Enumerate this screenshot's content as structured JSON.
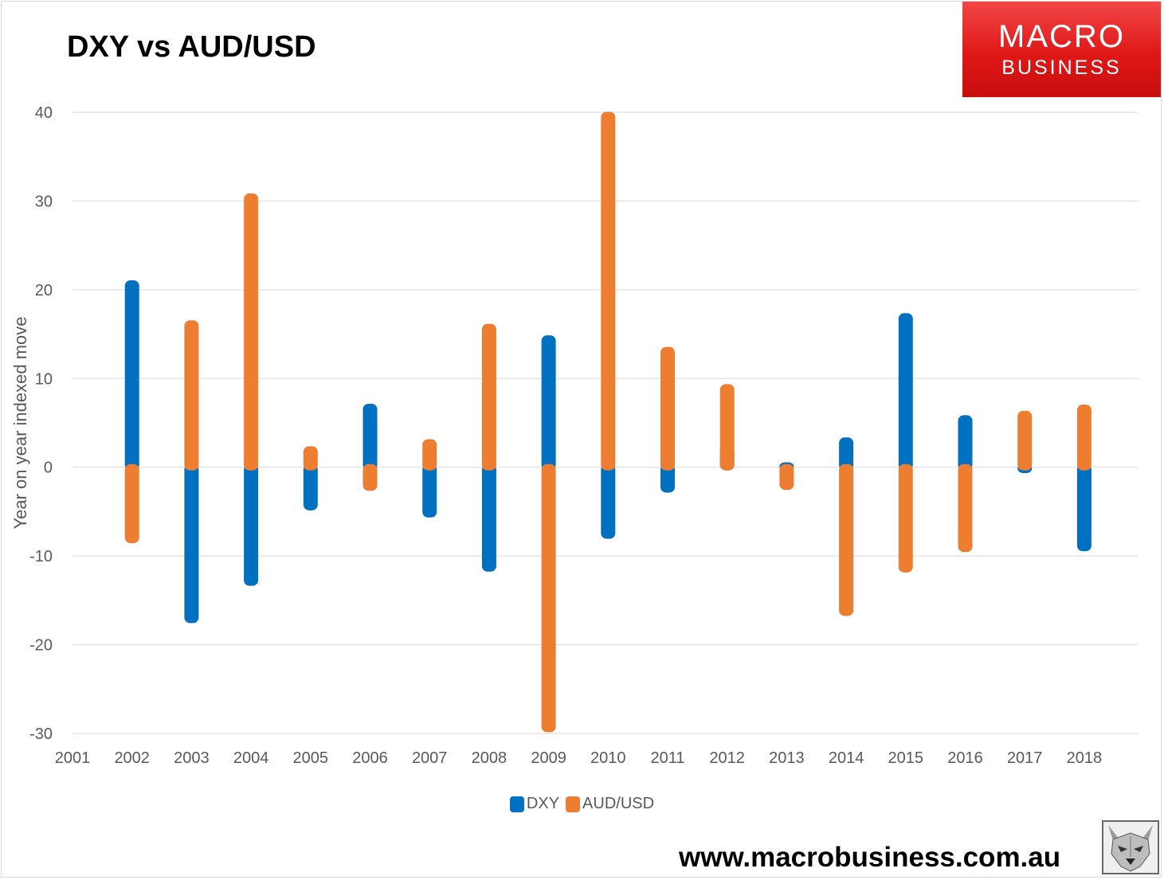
{
  "header": {
    "title": "DXY vs AUD/USD"
  },
  "brand": {
    "logo_line1": "MACRO",
    "logo_line2": "BUSINESS",
    "website": "www.macrobusiness.com.au",
    "logo_color": "#e01818"
  },
  "chart_data": {
    "type": "bar",
    "title": "DXY vs AUD/USD",
    "xlabel": "",
    "ylabel": "Year on year indexed move",
    "x_ticks": [
      "2001",
      "2002",
      "2003",
      "2004",
      "2005",
      "2006",
      "2007",
      "2008",
      "2009",
      "2010",
      "2011",
      "2012",
      "2013",
      "2014",
      "2015",
      "2016",
      "2017",
      "2018"
    ],
    "categories": [
      "2002",
      "2003",
      "2004",
      "2005",
      "2006",
      "2007",
      "2008",
      "2009",
      "2010",
      "2011",
      "2012",
      "2013",
      "2014",
      "2015",
      "2016",
      "2017",
      "2018"
    ],
    "ylim": [
      -30,
      40
    ],
    "y_ticks": [
      -30,
      -20,
      -10,
      0,
      10,
      20,
      30,
      40
    ],
    "grid": true,
    "legend_position": "bottom",
    "series": [
      {
        "name": "DXY",
        "color": "#0070c0",
        "values": [
          20.7,
          -17.2,
          -13.0,
          -4.5,
          6.8,
          -5.3,
          -11.4,
          14.5,
          -7.7,
          -2.5,
          2.0,
          0.2,
          3.0,
          17.0,
          5.5,
          -0.3,
          -9.1
        ]
      },
      {
        "name": "AUD/USD",
        "color": "#ed7d31",
        "values": [
          -8.2,
          16.2,
          30.5,
          2.0,
          -2.3,
          2.8,
          15.8,
          -29.5,
          39.7,
          13.2,
          9.0,
          -2.2,
          -16.4,
          -11.5,
          -9.2,
          6.0,
          6.7
        ]
      }
    ]
  }
}
